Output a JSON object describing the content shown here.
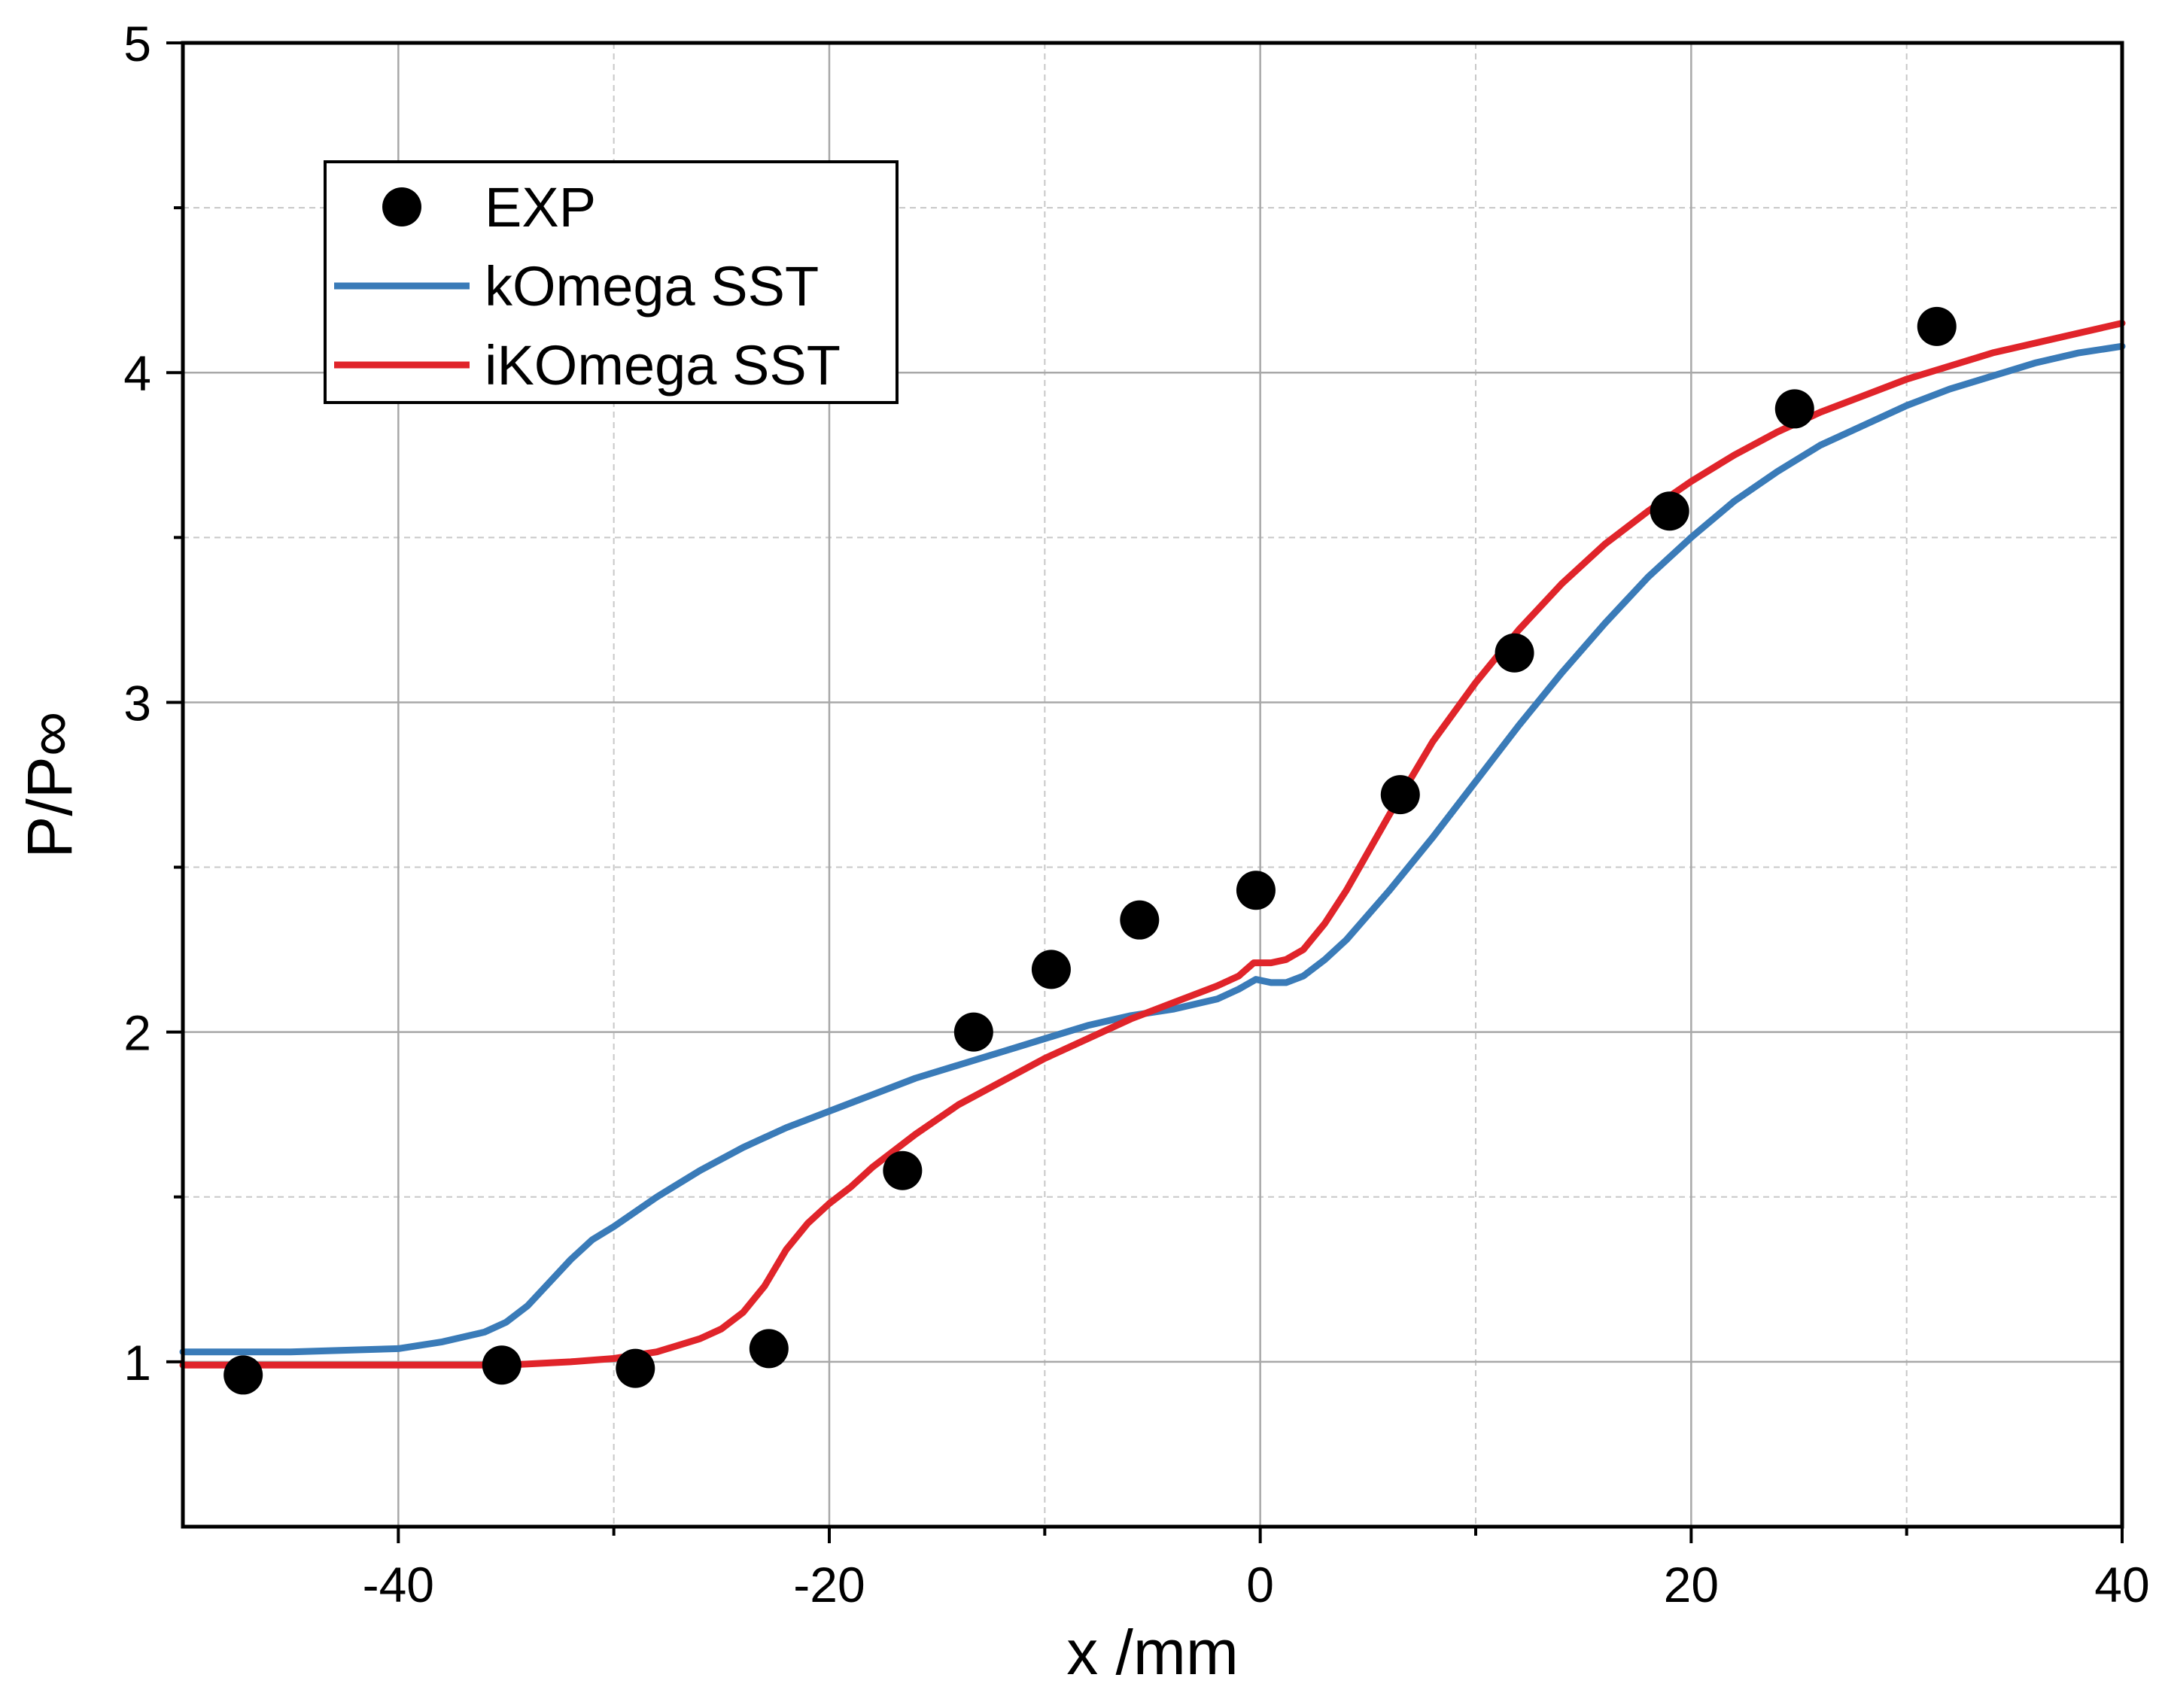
{
  "chart_data": {
    "type": "line",
    "xlabel": "x /mm",
    "ylabel": "P/P∞",
    "xlim": [
      -50,
      40
    ],
    "ylim": [
      0.5,
      5
    ],
    "xticks": [
      -40,
      -20,
      0,
      20,
      40
    ],
    "xtick_labels": [
      "-40",
      "-20",
      "0",
      "20",
      "40"
    ],
    "yticks": [
      1,
      2,
      3,
      4,
      5
    ],
    "ytick_labels": [
      "1",
      "2",
      "3",
      "4",
      "5"
    ],
    "grid": true,
    "legend_position": "top-left",
    "series": [
      {
        "name": "EXP",
        "kind": "scatter",
        "color": "#000000",
        "x": [
          -47.2,
          -35.2,
          -29.0,
          -22.8,
          -16.6,
          -13.3,
          -9.7,
          -5.6,
          -0.2,
          6.5,
          11.8,
          19.0,
          24.8,
          31.4
        ],
        "y": [
          0.96,
          0.99,
          0.98,
          1.04,
          1.58,
          2.0,
          2.19,
          2.34,
          2.43,
          2.72,
          3.15,
          3.58,
          3.89,
          4.14
        ]
      },
      {
        "name": "kOmega SST",
        "kind": "line",
        "color": "#3a7bb8",
        "x": [
          -50,
          -45,
          -40,
          -38,
          -36,
          -35,
          -34,
          -33,
          -32,
          -31,
          -30,
          -28,
          -26,
          -24,
          -22,
          -20,
          -18,
          -16,
          -14,
          -12,
          -10,
          -8,
          -6,
          -4,
          -2,
          -1,
          -0.2,
          0.5,
          1.2,
          2,
          3,
          4,
          6,
          8,
          10,
          12,
          14,
          16,
          18,
          20,
          22,
          24,
          26,
          28,
          30,
          32,
          34,
          36,
          38,
          40
        ],
        "y": [
          1.03,
          1.03,
          1.04,
          1.06,
          1.09,
          1.12,
          1.17,
          1.24,
          1.31,
          1.37,
          1.41,
          1.5,
          1.58,
          1.65,
          1.71,
          1.76,
          1.81,
          1.86,
          1.9,
          1.94,
          1.98,
          2.02,
          2.05,
          2.07,
          2.1,
          2.13,
          2.16,
          2.15,
          2.15,
          2.17,
          2.22,
          2.28,
          2.43,
          2.59,
          2.76,
          2.93,
          3.09,
          3.24,
          3.38,
          3.5,
          3.61,
          3.7,
          3.78,
          3.84,
          3.9,
          3.95,
          3.99,
          4.03,
          4.06,
          4.08
        ]
      },
      {
        "name": "iKOmega SST",
        "kind": "line",
        "color": "#e0242a",
        "x": [
          -50,
          -45,
          -40,
          -35,
          -32,
          -30,
          -28,
          -26,
          -25,
          -24,
          -23,
          -22,
          -21,
          -20,
          -19,
          -18,
          -16,
          -14,
          -12,
          -10,
          -8,
          -6,
          -4,
          -2,
          -1,
          -0.3,
          0.5,
          1.2,
          2,
          3,
          4,
          6,
          8,
          10,
          12,
          14,
          16,
          18,
          20,
          22,
          24,
          26,
          28,
          30,
          32,
          34,
          36,
          38,
          40
        ],
        "y": [
          0.99,
          0.99,
          0.99,
          0.99,
          1.0,
          1.01,
          1.03,
          1.07,
          1.1,
          1.15,
          1.23,
          1.34,
          1.42,
          1.48,
          1.53,
          1.59,
          1.69,
          1.78,
          1.85,
          1.92,
          1.98,
          2.04,
          2.09,
          2.14,
          2.17,
          2.21,
          2.21,
          2.22,
          2.25,
          2.33,
          2.43,
          2.66,
          2.88,
          3.06,
          3.22,
          3.36,
          3.48,
          3.58,
          3.67,
          3.75,
          3.82,
          3.88,
          3.93,
          3.98,
          4.02,
          4.06,
          4.09,
          4.12,
          4.15
        ]
      }
    ]
  }
}
